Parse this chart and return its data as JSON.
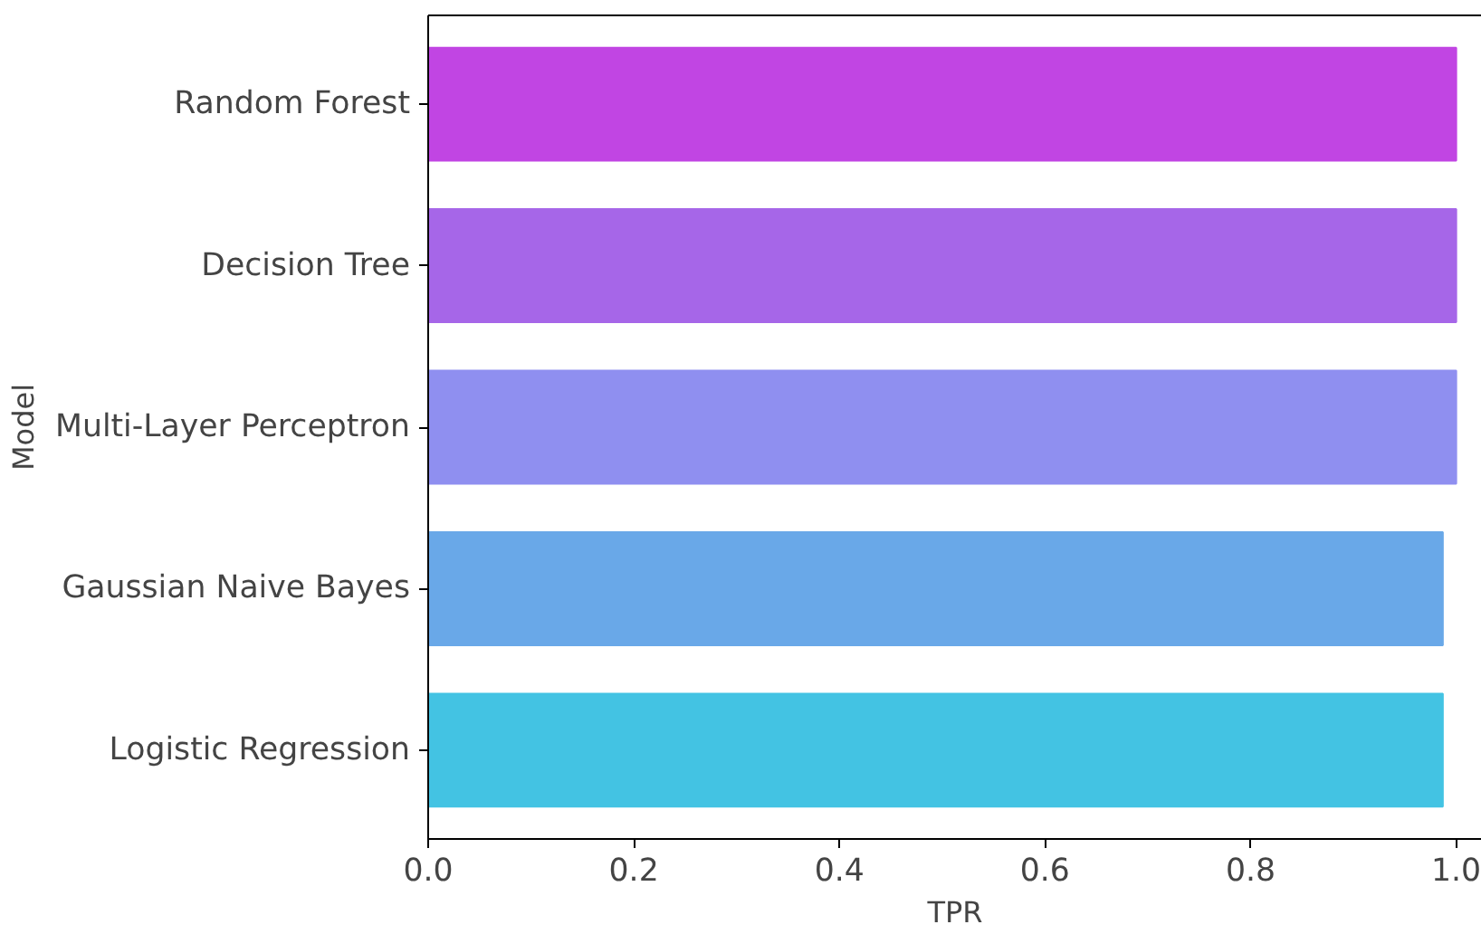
{
  "chart_data": {
    "type": "bar",
    "orientation": "horizontal",
    "xlabel": "TPR",
    "ylabel": "Model",
    "categories": [
      "Random Forest",
      "Decision Tree",
      "Multi-Layer Perceptron",
      "Gaussian Naive Bayes",
      "Logistic Regression"
    ],
    "values": [
      1.0,
      1.0,
      1.0,
      0.987,
      0.987
    ],
    "colors": [
      "#c145e3",
      "#a666e8",
      "#8f8ff0",
      "#69a8e8",
      "#43c3e3"
    ],
    "xlim": [
      0,
      1.025
    ],
    "xticks": [
      {
        "value": 0,
        "label": "0.0"
      },
      {
        "value": 0.2,
        "label": "0.2"
      },
      {
        "value": 0.4,
        "label": "0.4"
      },
      {
        "value": 0.6,
        "label": "0.6"
      },
      {
        "value": 0.8,
        "label": "0.8"
      },
      {
        "value": 1.0,
        "label": "1.0"
      }
    ],
    "grid": false
  }
}
